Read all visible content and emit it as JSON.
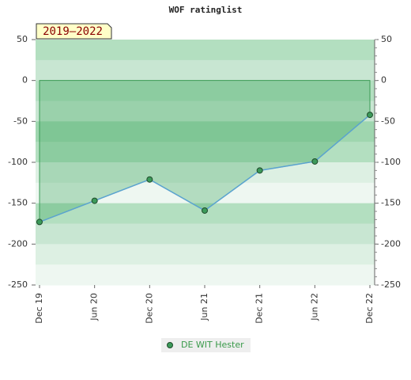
{
  "chart_data": {
    "type": "line",
    "title": "WOF ratinglist",
    "period_label": "2019–2022",
    "categories": [
      "Dec 19",
      "Jun 20",
      "Dec 20",
      "Jun 21",
      "Dec 21",
      "Jun 22",
      "Dec 22"
    ],
    "series": [
      {
        "name": "DE WIT Hester",
        "color": "#5ba3d0",
        "values": [
          -173,
          -147,
          -121,
          -159,
          -110,
          -99,
          -42
        ]
      }
    ],
    "ylim": [
      -250,
      50
    ],
    "yticks": [
      -250,
      -200,
      -150,
      -100,
      -50,
      0,
      50
    ],
    "y2lim": [
      -250,
      50
    ],
    "y2ticks": [
      -250,
      -200,
      -150,
      -100,
      -50,
      0,
      50
    ],
    "area_fill": true
  }
}
